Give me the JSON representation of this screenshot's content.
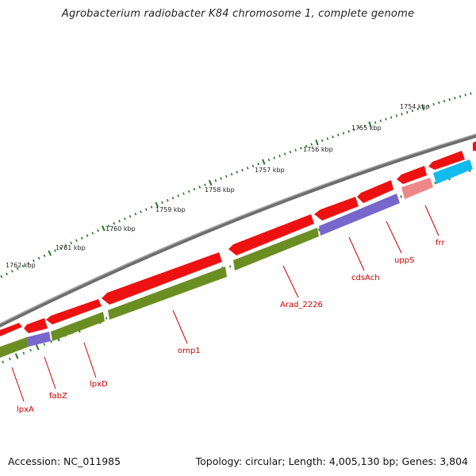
{
  "title": "Agrobacterium radiobacter K84 chromosome 1, complete genome",
  "footer": {
    "accession": "Accession: NC_011985",
    "summary": "Topology: circular; Length: 4,005,130 bp; Genes: 3,804"
  },
  "colors": {
    "backbone": "#777777",
    "cds": "#ee1111",
    "gene": "#6b8e23",
    "rrna_like": "#7766cc",
    "frr": "#ee8888",
    "frr_gene": "#11bbee",
    "tick": "#227722",
    "label": "#cc0000"
  },
  "ruler": [
    {
      "label": "1754 kbp"
    },
    {
      "label": "1755 kbp"
    },
    {
      "label": "1756 kbp"
    },
    {
      "label": "1757 kbp"
    },
    {
      "label": "1758 kbp"
    },
    {
      "label": "1759 kbp"
    },
    {
      "label": "1760 kbp"
    },
    {
      "label": "1761 kbp"
    },
    {
      "label": "1762 kbp"
    }
  ],
  "gene_labels": [
    {
      "name": "lpxA"
    },
    {
      "name": "fabZ"
    },
    {
      "name": "lpxD"
    },
    {
      "name": "omp1"
    },
    {
      "name": "Arad_2226"
    },
    {
      "name": "cdsAch"
    },
    {
      "name": "uppS"
    },
    {
      "name": "frr"
    }
  ]
}
